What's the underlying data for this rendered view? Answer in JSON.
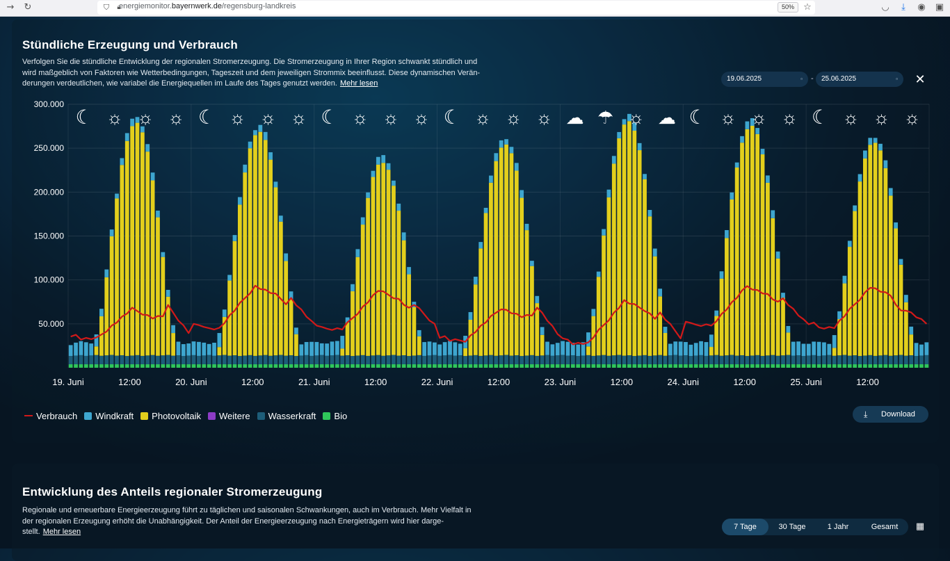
{
  "browser": {
    "url_prefix": "energiemonitor.",
    "url_domain": "bayernwerk.de",
    "url_path": "/regensburg-landkreis",
    "zoom": "50%",
    "icons": [
      "back-icon",
      "reload-icon",
      "shield-icon",
      "lock-icon",
      "bookmark-star-icon",
      "pocket-icon",
      "download-icon",
      "account-icon",
      "extensions-icon"
    ]
  },
  "section1": {
    "title": "Stündliche Erzeugung und Verbrauch",
    "desc_line1": "Verfolgen Sie die stündliche Entwicklung der regionalen Stromerzeugung. Die Stromerzeugung in Ihrer Region schwankt stündlich und",
    "desc_line2": "wird maßgeblich von Faktoren wie Wetterbedingungen, Tageszeit und dem jeweiligen Strommix beeinflusst. Diese dynamischen Verän-",
    "desc_line3": "derungen verdeutlichen, wie variabel die Energiequellen im Laufe des Tages genutzt werden.",
    "read_more": "Mehr lesen",
    "date_from": "19.06.2025",
    "date_separator": "-",
    "date_to": "25.06.2025",
    "download_label": "Download"
  },
  "section2": {
    "title": "Entwicklung des Anteils regionaler Stromerzeugung",
    "desc_line1": "Regionale und erneuerbare Energieerzeugung führt zu täglichen und saisonalen Schwankungen, auch im Verbrauch. Mehr Vielfalt in",
    "desc_line2": "der regionalen Erzeugung erhöht die Unabhängigkeit. Der Anteil der Energieerzeugung nach Energieträgern wird hier darge-",
    "desc_line3": "stellt.",
    "read_more": "Mehr lesen",
    "tabs": [
      "7 Tage",
      "30 Tage",
      "1 Jahr",
      "Gesamt"
    ],
    "active_tab": "7 Tage"
  },
  "colors": {
    "verbrauch": "#d11919",
    "windkraft": "#3ea6cf",
    "photovoltaik": "#e3cf1c",
    "weitere": "#8d3cc6",
    "wasserkraft": "#1d5d79",
    "bio": "#2fc65a"
  },
  "chart_data": {
    "type": "bar",
    "stacked": true,
    "hours_per_day": 24,
    "yticks": [
      "300.000",
      "250.000",
      "200.000",
      "150.000",
      "100.000",
      "50.000"
    ],
    "ylim": [
      0,
      300000
    ],
    "xtick_labels": [
      "19. Juni",
      "12:00",
      "20. Juni",
      "12:00",
      "21. Juni",
      "12:00",
      "22. Juni",
      "12:00",
      "23. Juni",
      "12:00",
      "24. Juni",
      "12:00",
      "25. Juni",
      "12:00"
    ],
    "weather_icons": [
      "moon",
      "sun",
      "sun",
      "sun",
      "moon",
      "sun",
      "sun",
      "sun",
      "moon",
      "sun",
      "sun",
      "sun",
      "moon",
      "sun",
      "sun",
      "sun",
      "cloud-moon",
      "rain",
      "sun",
      "cloudy-sun",
      "moon",
      "sun",
      "sun",
      "sun",
      "moon",
      "sun",
      "sun",
      "sun"
    ],
    "legend": [
      "Verbrauch",
      "Windkraft",
      "Photovoltaik",
      "Weitere",
      "Wasserkraft",
      "Bio"
    ],
    "series": [
      {
        "name": "Photovoltaik",
        "daily_peak_values": [
          265000,
          255000,
          220000,
          240000,
          267000,
          262000,
          243000
        ]
      },
      {
        "name": "Windkraft",
        "typical_value": 9000
      },
      {
        "name": "Wasserkraft",
        "typical_value": 10000
      },
      {
        "name": "Bio",
        "typical_value": 4000
      },
      {
        "name": "Weitere",
        "typical_value": 0
      }
    ],
    "verbrauch_daily": [
      {
        "night": 33000,
        "midday": 67000,
        "evening": 70000
      },
      {
        "night": 45000,
        "midday": 93000,
        "evening": 79000
      },
      {
        "night": 44000,
        "midday": 88000,
        "evening": 72000
      },
      {
        "night": 31000,
        "midday": 68000,
        "evening": 70000
      },
      {
        "night": 28000,
        "midday": 76000,
        "evening": 62000
      },
      {
        "night": 48000,
        "midday": 93000,
        "evening": 79000
      },
      {
        "night": 46000,
        "midday": 92000,
        "evening": 66000
      }
    ],
    "grid": true,
    "legend_position": "bottom-left"
  }
}
